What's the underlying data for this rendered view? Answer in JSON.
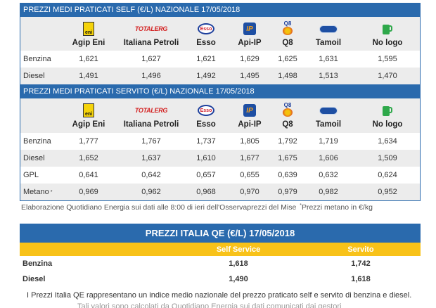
{
  "brands": [
    {
      "name": "Agip Eni",
      "icon": "eni-logo-icon"
    },
    {
      "name": "Italiana Petroli",
      "icon": "totalerg-logo-icon",
      "logo_text": "TOTALERG"
    },
    {
      "name": "Esso",
      "icon": "esso-logo-icon",
      "logo_text": "Esso"
    },
    {
      "name": "Api-IP",
      "icon": "api-ip-logo-icon",
      "logo_text": "IP"
    },
    {
      "name": "Q8",
      "icon": "q8-logo-icon",
      "logo_text": "Q8"
    },
    {
      "name": "Tamoil",
      "icon": "tamoil-logo-icon"
    },
    {
      "name": "No logo",
      "icon": "fuel-pump-icon"
    }
  ],
  "self": {
    "title": "PREZZI MEDI PRATICATI SELF (€/L) NAZIONALE 17/05/2018",
    "rows": [
      {
        "label": "Benzina",
        "values": [
          "1,621",
          "1,627",
          "1,621",
          "1,629",
          "1,625",
          "1,631",
          "1,595"
        ]
      },
      {
        "label": "Diesel",
        "values": [
          "1,491",
          "1,496",
          "1,492",
          "1,495",
          "1,498",
          "1,513",
          "1,470"
        ]
      }
    ]
  },
  "servito": {
    "title": "PREZZI MEDI PRATICATI SERVITO (€/L) NAZIONALE 17/05/2018",
    "rows": [
      {
        "label": "Benzina",
        "values": [
          "1,777",
          "1,767",
          "1,737",
          "1,805",
          "1,792",
          "1,719",
          "1,634"
        ]
      },
      {
        "label": "Diesel",
        "values": [
          "1,652",
          "1,637",
          "1,610",
          "1,677",
          "1,675",
          "1,606",
          "1,509"
        ]
      },
      {
        "label": "GPL",
        "values": [
          "0,641",
          "0,642",
          "0,657",
          "0,655",
          "0,639",
          "0,632",
          "0,624"
        ]
      },
      {
        "label": "Metano",
        "sup": "*",
        "values": [
          "0,969",
          "0,962",
          "0,968",
          "0,970",
          "0,979",
          "0,982",
          "0,952"
        ]
      }
    ]
  },
  "footnote": {
    "text": "Elaborazione Quotidiano Energia sui dati alle 8:00 di ieri dell'Osservaprezzi del Mise ",
    "sup": "*",
    "tail": "Prezzi metano in €/kg"
  },
  "qe": {
    "title": "PREZZI ITALIA QE (€/L) 17/05/2018",
    "col_self": "Self Service",
    "col_servito": "Servito",
    "rows": [
      {
        "label": "Benzina",
        "self": "1,618",
        "servito": "1,742"
      },
      {
        "label": "Diesel",
        "self": "1,490",
        "servito": "1,618"
      }
    ],
    "note": "I Prezzi Italia QE rappresentano un indice medio nazionale del prezzo praticato self e servito di benzina e diesel.",
    "note2": "Tali valori sono calcolati da Quotidiano Energia sui dati comunicati dai gestori"
  },
  "colors": {
    "header_blue": "#2a6aad",
    "stripe_grey": "#ececec",
    "qe_yellow": "#f8c219"
  }
}
